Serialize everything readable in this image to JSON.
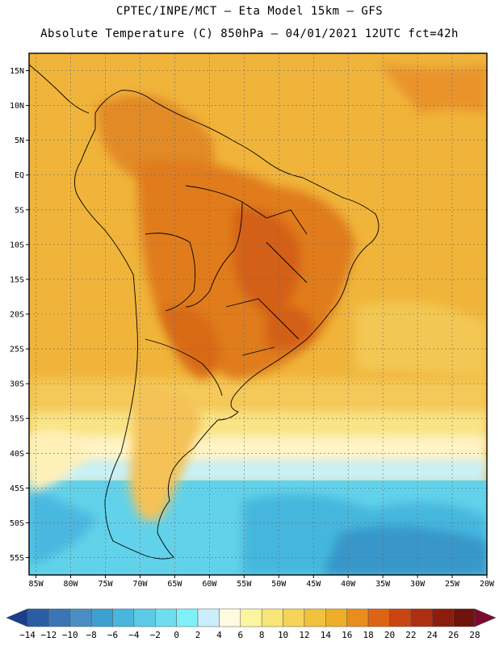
{
  "header": {
    "line1": "CPTEC/INPE/MCT –  Eta Model 15km – GFS",
    "line2": "Absolute Temperature (C) 850hPa – 04/01/2021 12UTC fct=42h"
  },
  "axes": {
    "lat_labels": [
      "15N",
      "10N",
      "5N",
      "EQ",
      "5S",
      "10S",
      "15S",
      "20S",
      "25S",
      "30S",
      "35S",
      "40S",
      "45S",
      "50S",
      "55S"
    ],
    "lat_values": [
      15,
      10,
      5,
      0,
      -5,
      -10,
      -15,
      -20,
      -25,
      -30,
      -35,
      -40,
      -45,
      -50,
      -55
    ],
    "lon_labels": [
      "85W",
      "80W",
      "75W",
      "70W",
      "65W",
      "60W",
      "55W",
      "50W",
      "45W",
      "40W",
      "35W",
      "30W",
      "25W",
      "20W"
    ],
    "lon_values": [
      -85,
      -80,
      -75,
      -70,
      -65,
      -60,
      -55,
      -50,
      -45,
      -40,
      -35,
      -30,
      -25,
      -20
    ],
    "lon_range": [
      -86,
      -20
    ],
    "lat_range": [
      -57.5,
      17.5
    ]
  },
  "colorbar": {
    "labels": [
      "-14",
      "-12",
      "-10",
      "-8",
      "-6",
      "-4",
      "-2",
      "0",
      "2",
      "4",
      "6",
      "8",
      "10",
      "12",
      "14",
      "16",
      "18",
      "20",
      "22",
      "24",
      "26",
      "28"
    ],
    "colors": [
      "#1a3e8c",
      "#2a5da3",
      "#3a76b5",
      "#4a8ec4",
      "#3ea0cf",
      "#4ab6de",
      "#5ccbe8",
      "#6fdcf0",
      "#7ff0f8",
      "#cbeffa",
      "#fffae0",
      "#fbf5a0",
      "#f9e67a",
      "#f6d359",
      "#f2c23e",
      "#eeae2a",
      "#e98d1c",
      "#dd6414",
      "#c94612",
      "#ad2e10",
      "#8c1d0e",
      "#6e140c",
      "#7a0a30"
    ],
    "unit": "C"
  },
  "colors": {
    "warm": "#f0b32a",
    "hot": "#e07a20",
    "hottest": "#d45f12",
    "mild": "#f7d35c",
    "cool": "#fff4b8",
    "cold": "#6ad6ec",
    "colder": "#4bbbe0",
    "coldest": "#2f86c0"
  }
}
